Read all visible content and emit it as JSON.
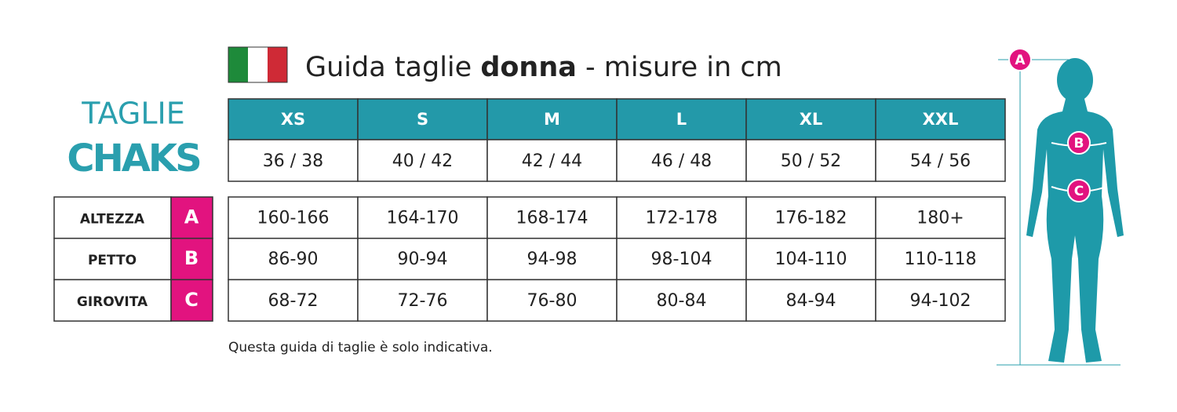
{
  "header": {
    "title_prefix": "Guida taglie",
    "title_bold": "donna",
    "title_suffix": "- misure in cm"
  },
  "brand": {
    "line1": "TAGLIE",
    "line2": "CHAKS"
  },
  "sizes": {
    "labels": [
      "XS",
      "S",
      "M",
      "L",
      "XL",
      "XXL"
    ],
    "italian": [
      "36 / 38",
      "40 / 42",
      "42 / 44",
      "46 / 48",
      "50 / 52",
      "54 / 56"
    ]
  },
  "measures": [
    {
      "label": "ALTEZZA",
      "letter": "A",
      "values": [
        "160-166",
        "164-170",
        "168-174",
        "172-178",
        "176-182",
        "180+"
      ]
    },
    {
      "label": "PETTO",
      "letter": "B",
      "values": [
        "86-90",
        "90-94",
        "94-98",
        "98-104",
        "104-110",
        "110-118"
      ]
    },
    {
      "label": "GIROVITA",
      "letter": "C",
      "values": [
        "68-72",
        "72-76",
        "76-80",
        "80-84",
        "84-94",
        "94-102"
      ]
    }
  ],
  "note": "Questa guida di taglie è solo indicativa.",
  "figure": {
    "markers": [
      "A",
      "B",
      "C"
    ]
  }
}
